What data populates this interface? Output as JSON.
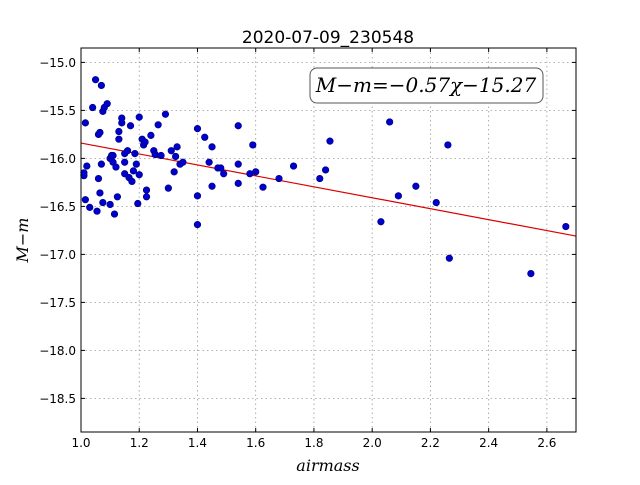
{
  "chart_data": {
    "type": "scatter",
    "title": "2020-07-09_230548",
    "xlabel": "airmass",
    "ylabel": "M−m",
    "annotation": "M−m=−0.57χ−15.27",
    "xlim": [
      1.0,
      2.7
    ],
    "ylim": [
      -18.85,
      -14.85
    ],
    "y_inverted": true,
    "grid": true,
    "xticks": [
      1.0,
      1.2,
      1.4,
      1.6,
      1.8,
      2.0,
      2.2,
      2.4,
      2.6
    ],
    "xtick_labels": [
      "1.0",
      "1.2",
      "1.4",
      "1.6",
      "1.8",
      "2.0",
      "2.2",
      "2.4",
      "2.6"
    ],
    "yticks": [
      -15.0,
      -15.5,
      -16.0,
      -16.5,
      -17.0,
      -17.5,
      -18.0,
      -18.5
    ],
    "ytick_labels": [
      "−15.0",
      "−15.5",
      "−16.0",
      "−16.5",
      "−17.0",
      "−17.5",
      "−18.0",
      "−18.5"
    ],
    "colors": {
      "points": "#0000cc",
      "fit_line": "#dd0000",
      "grid": "#9a9a9a"
    },
    "fit": {
      "slope": -0.57,
      "intercept": -15.27
    },
    "points": [
      [
        1.01,
        -16.15
      ],
      [
        1.01,
        -16.18
      ],
      [
        1.015,
        -15.63
      ],
      [
        1.02,
        -16.08
      ],
      [
        1.015,
        -16.43
      ],
      [
        1.03,
        -16.51
      ],
      [
        1.04,
        -15.47
      ],
      [
        1.05,
        -15.18
      ],
      [
        1.055,
        -16.55
      ],
      [
        1.06,
        -15.75
      ],
      [
        1.065,
        -15.73
      ],
      [
        1.06,
        -16.21
      ],
      [
        1.065,
        -16.36
      ],
      [
        1.07,
        -15.24
      ],
      [
        1.075,
        -15.51
      ],
      [
        1.07,
        -16.06
      ],
      [
        1.08,
        -15.47
      ],
      [
        1.075,
        -16.46
      ],
      [
        1.09,
        -15.43
      ],
      [
        1.1,
        -16.0
      ],
      [
        1.105,
        -15.97
      ],
      [
        1.1,
        -16.48
      ],
      [
        1.11,
        -15.97
      ],
      [
        1.11,
        -16.04
      ],
      [
        1.115,
        -16.58
      ],
      [
        1.12,
        -16.09
      ],
      [
        1.125,
        -16.4
      ],
      [
        1.13,
        -15.72
      ],
      [
        1.13,
        -15.8
      ],
      [
        1.14,
        -15.58
      ],
      [
        1.14,
        -15.63
      ],
      [
        1.15,
        -15.95
      ],
      [
        1.15,
        -16.04
      ],
      [
        1.15,
        -16.16
      ],
      [
        1.16,
        -15.92
      ],
      [
        1.165,
        -16.2
      ],
      [
        1.17,
        -15.66
      ],
      [
        1.175,
        -16.24
      ],
      [
        1.18,
        -16.13
      ],
      [
        1.185,
        -15.95
      ],
      [
        1.19,
        -16.06
      ],
      [
        1.195,
        -16.47
      ],
      [
        1.2,
        -16.17
      ],
      [
        1.2,
        -15.57
      ],
      [
        1.21,
        -15.8
      ],
      [
        1.215,
        -15.86
      ],
      [
        1.22,
        -15.83
      ],
      [
        1.225,
        -16.33
      ],
      [
        1.225,
        -16.4
      ],
      [
        1.24,
        -15.76
      ],
      [
        1.25,
        -15.92
      ],
      [
        1.255,
        -15.96
      ],
      [
        1.265,
        -15.65
      ],
      [
        1.275,
        -15.97
      ],
      [
        1.29,
        -15.54
      ],
      [
        1.3,
        -16.31
      ],
      [
        1.31,
        -15.92
      ],
      [
        1.32,
        -16.14
      ],
      [
        1.325,
        -15.98
      ],
      [
        1.33,
        -15.88
      ],
      [
        1.34,
        -16.06
      ],
      [
        1.35,
        -16.04
      ],
      [
        1.4,
        -15.69
      ],
      [
        1.4,
        -16.39
      ],
      [
        1.4,
        -16.69
      ],
      [
        1.425,
        -15.78
      ],
      [
        1.44,
        -16.04
      ],
      [
        1.45,
        -15.88
      ],
      [
        1.45,
        -16.29
      ],
      [
        1.47,
        -16.1
      ],
      [
        1.48,
        -16.1
      ],
      [
        1.49,
        -16.16
      ],
      [
        1.54,
        -15.66
      ],
      [
        1.54,
        -16.06
      ],
      [
        1.54,
        -16.26
      ],
      [
        1.58,
        -16.16
      ],
      [
        1.59,
        -15.86
      ],
      [
        1.6,
        -16.14
      ],
      [
        1.625,
        -16.3
      ],
      [
        1.68,
        -16.21
      ],
      [
        1.73,
        -16.08
      ],
      [
        1.82,
        -16.21
      ],
      [
        1.84,
        -16.12
      ],
      [
        1.855,
        -15.82
      ],
      [
        2.03,
        -16.66
      ],
      [
        2.06,
        -15.62
      ],
      [
        2.09,
        -16.39
      ],
      [
        2.15,
        -16.29
      ],
      [
        2.22,
        -16.46
      ],
      [
        2.26,
        -15.86
      ],
      [
        2.265,
        -17.04
      ],
      [
        2.545,
        -17.2
      ],
      [
        2.665,
        -16.71
      ]
    ]
  }
}
